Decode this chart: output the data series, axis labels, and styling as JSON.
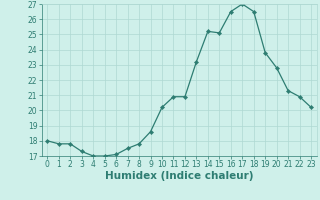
{
  "x": [
    0,
    1,
    2,
    3,
    4,
    5,
    6,
    7,
    8,
    9,
    10,
    11,
    12,
    13,
    14,
    15,
    16,
    17,
    18,
    19,
    20,
    21,
    22,
    23
  ],
  "y": [
    18.0,
    17.8,
    17.8,
    17.3,
    17.0,
    17.0,
    17.1,
    17.5,
    17.8,
    18.6,
    20.2,
    20.9,
    20.9,
    23.2,
    25.2,
    25.1,
    26.5,
    27.0,
    26.5,
    23.8,
    22.8,
    21.3,
    20.9,
    20.2
  ],
  "line_color": "#2e7d72",
  "marker": "D",
  "marker_size": 2.2,
  "bg_color": "#cff0ea",
  "grid_color": "#aed8d2",
  "xlabel": "Humidex (Indice chaleur)",
  "xlim": [
    -0.5,
    23.5
  ],
  "ylim": [
    17,
    27
  ],
  "yticks": [
    17,
    18,
    19,
    20,
    21,
    22,
    23,
    24,
    25,
    26,
    27
  ],
  "xticks": [
    0,
    1,
    2,
    3,
    4,
    5,
    6,
    7,
    8,
    9,
    10,
    11,
    12,
    13,
    14,
    15,
    16,
    17,
    18,
    19,
    20,
    21,
    22,
    23
  ],
  "tick_color": "#2e7d72",
  "label_color": "#2e7d72",
  "tick_fontsize": 5.5,
  "xlabel_fontsize": 7.5,
  "linewidth": 0.9
}
